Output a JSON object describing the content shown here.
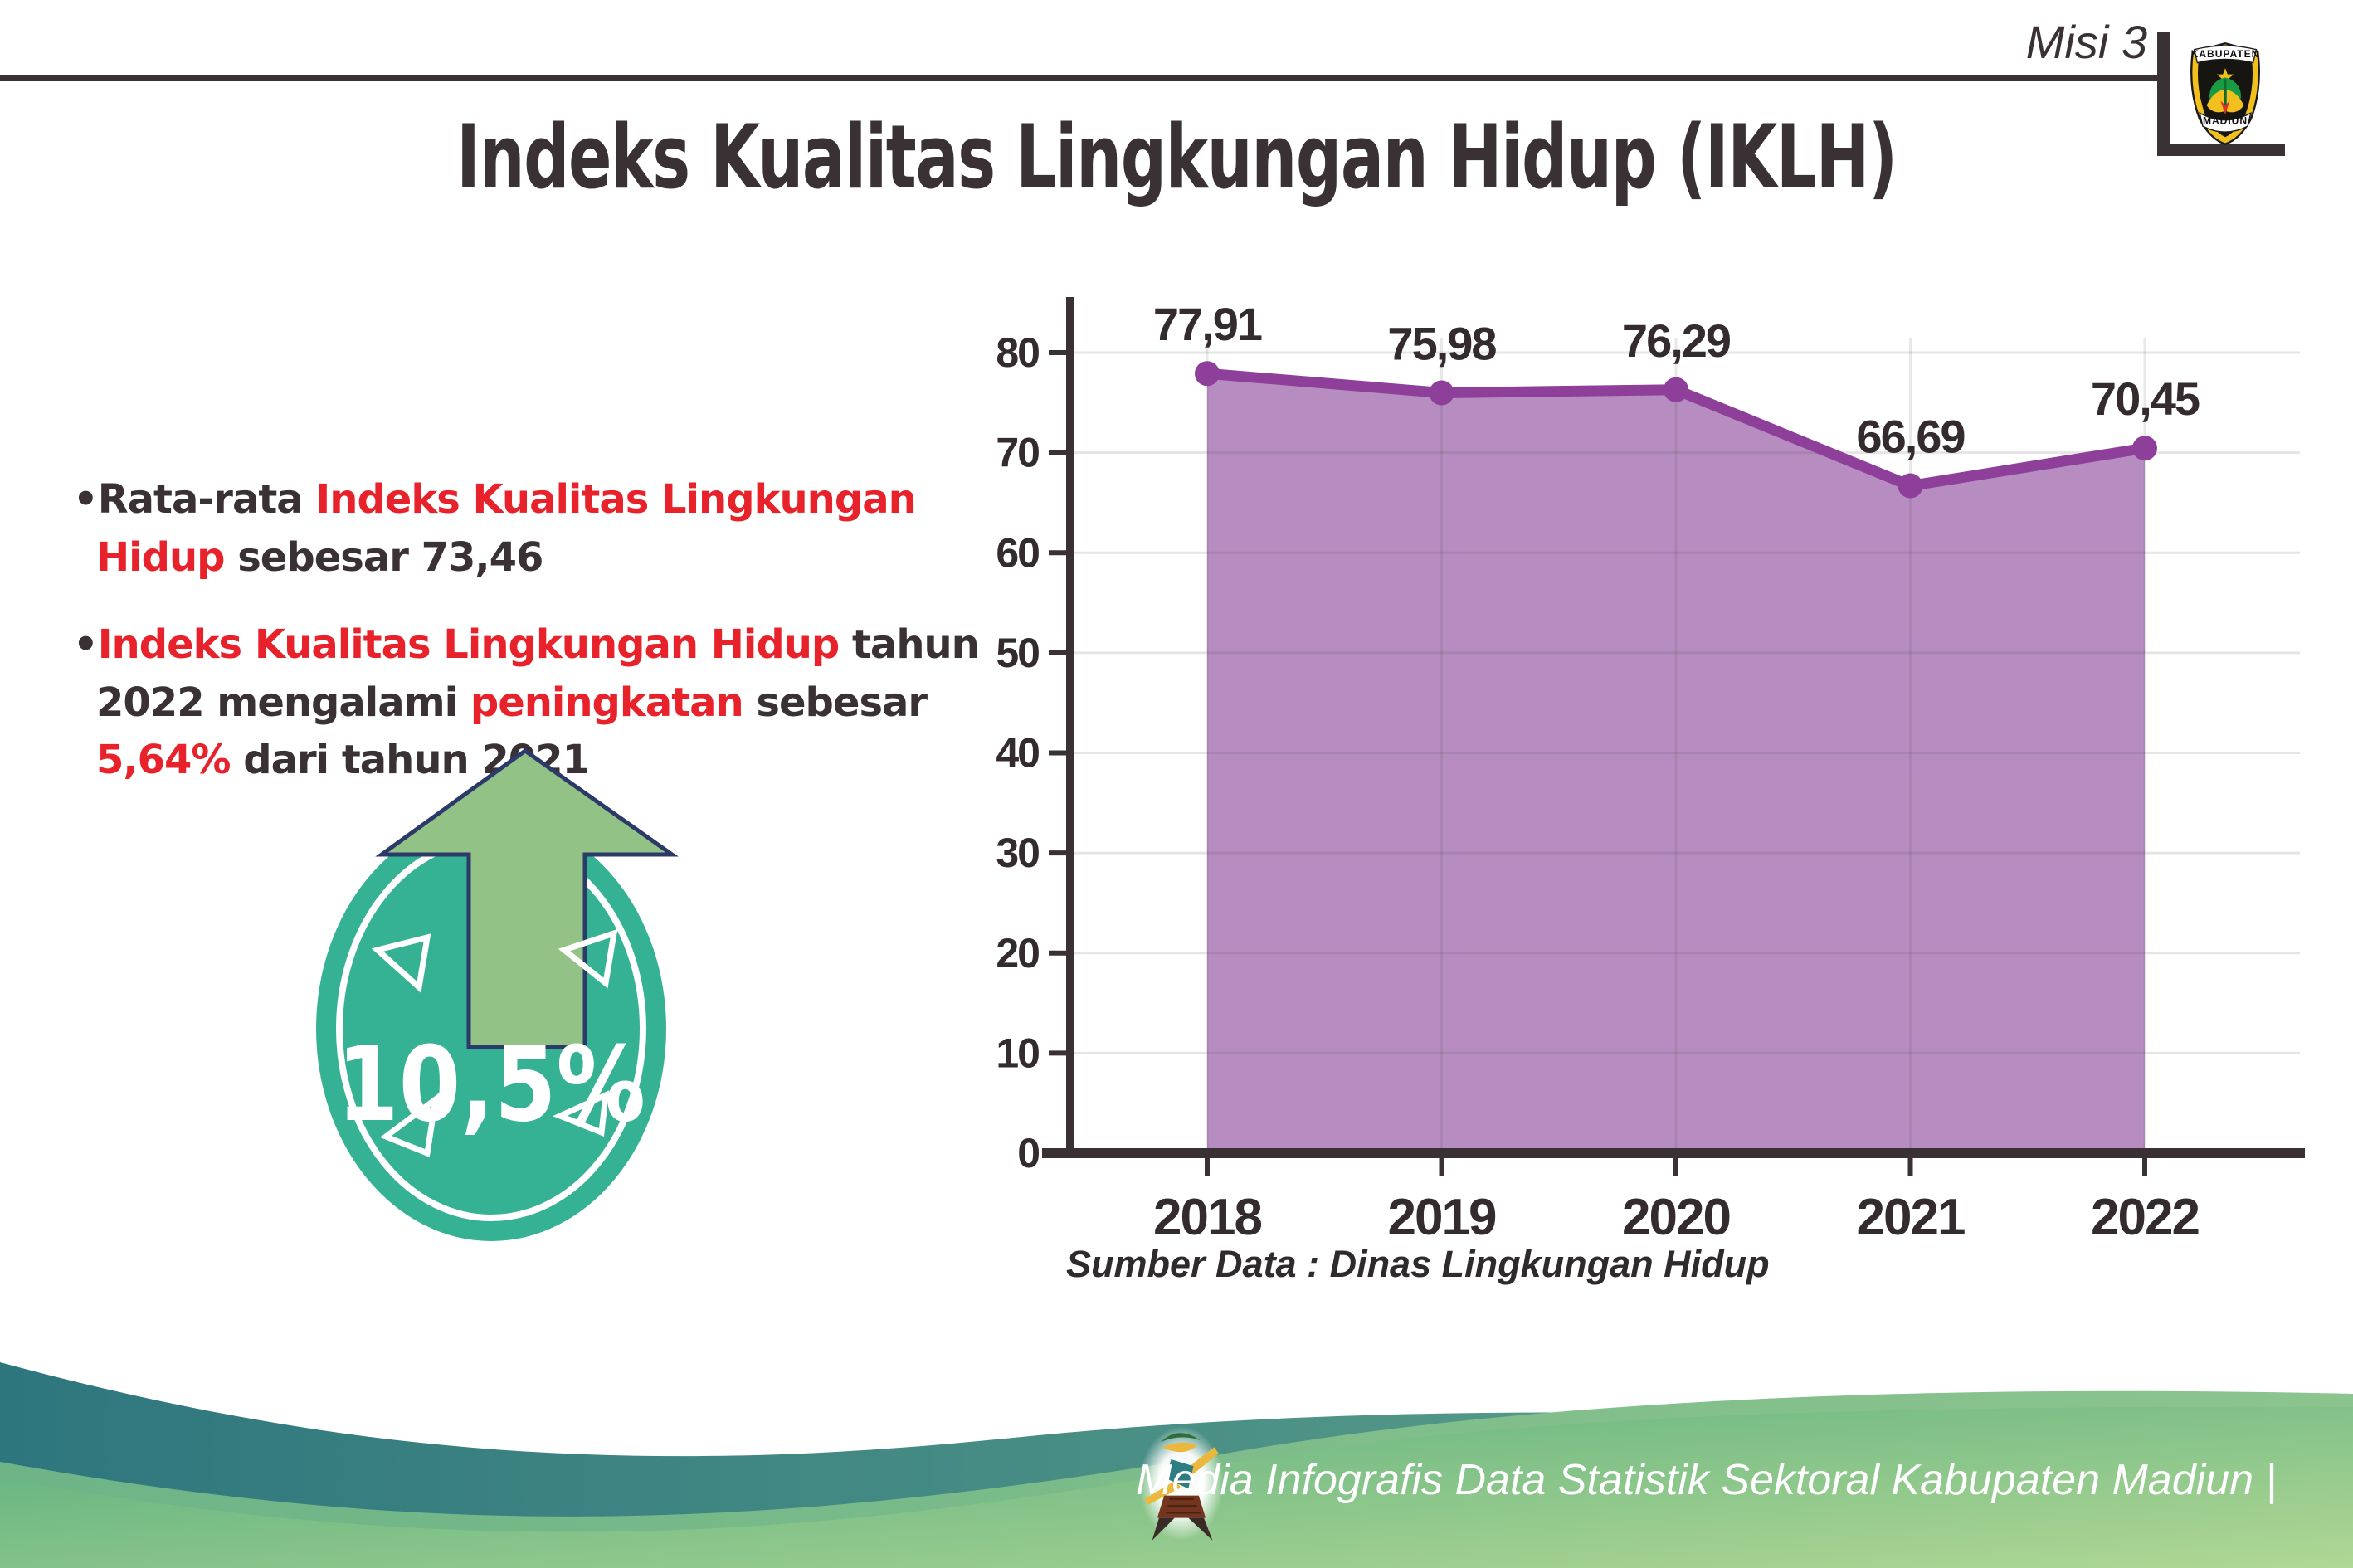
{
  "page": {
    "misi_label": "Misi 3",
    "title": "Indeks Kualitas Lingkungan Hidup (IKLH)"
  },
  "logo": {
    "top": "KABUPATEN",
    "bottom": "MADIUN"
  },
  "bullets": {
    "marker": "•",
    "b1": {
      "seg_dark1": "Rata-rata ",
      "seg_red1": "Indeks Kualitas Lingkungan Hidup",
      "seg_dark2": " sebesar 73,46"
    },
    "b2": {
      "seg_red1": "Indeks Kualitas Lingkungan Hidup",
      "seg_dark1": " tahun 2022 mengalami ",
      "seg_red2": "peningkatan",
      "seg_dark2": " sebesar ",
      "seg_red3": "5,64%",
      "seg_dark3": " dari tahun 2021"
    }
  },
  "badge": {
    "value": "10,5%"
  },
  "chart_data": {
    "type": "area",
    "title": "",
    "xlabel": "",
    "ylabel": "",
    "categories": [
      "2018",
      "2019",
      "2020",
      "2021",
      "2022"
    ],
    "values": [
      77.91,
      75.98,
      76.29,
      66.69,
      70.45
    ],
    "point_labels": [
      "77,91",
      "75,98",
      "76,29",
      "66,69",
      "70,45"
    ],
    "yticks": [
      0,
      10,
      20,
      30,
      40,
      50,
      60,
      70,
      80
    ],
    "ylim": [
      0,
      85
    ],
    "grid": true,
    "legend": "none",
    "line_color": "#8d3f9a",
    "fill_color": "#b78cc0",
    "axis_color": "#3a3134",
    "label_color": "#332b2d"
  },
  "source_text": "Sumber Data : Dinas Lingkungan Hidup",
  "footer": {
    "credit": "Media Infografis Data Statistik Sektoral Kabupaten Madiun |"
  },
  "colors": {
    "accent_red": "#e8222a",
    "badge_teal": "#35b293",
    "arrow_green": "#92c285",
    "arrow_outline_navy": "#2b3a69",
    "dark_text": "#3a3134",
    "wave_teal_left": "#2e767e",
    "wave_teal_right": "#67a98c",
    "wave_green_left": "#57ad7e",
    "wave_green_right": "#b0d794"
  }
}
